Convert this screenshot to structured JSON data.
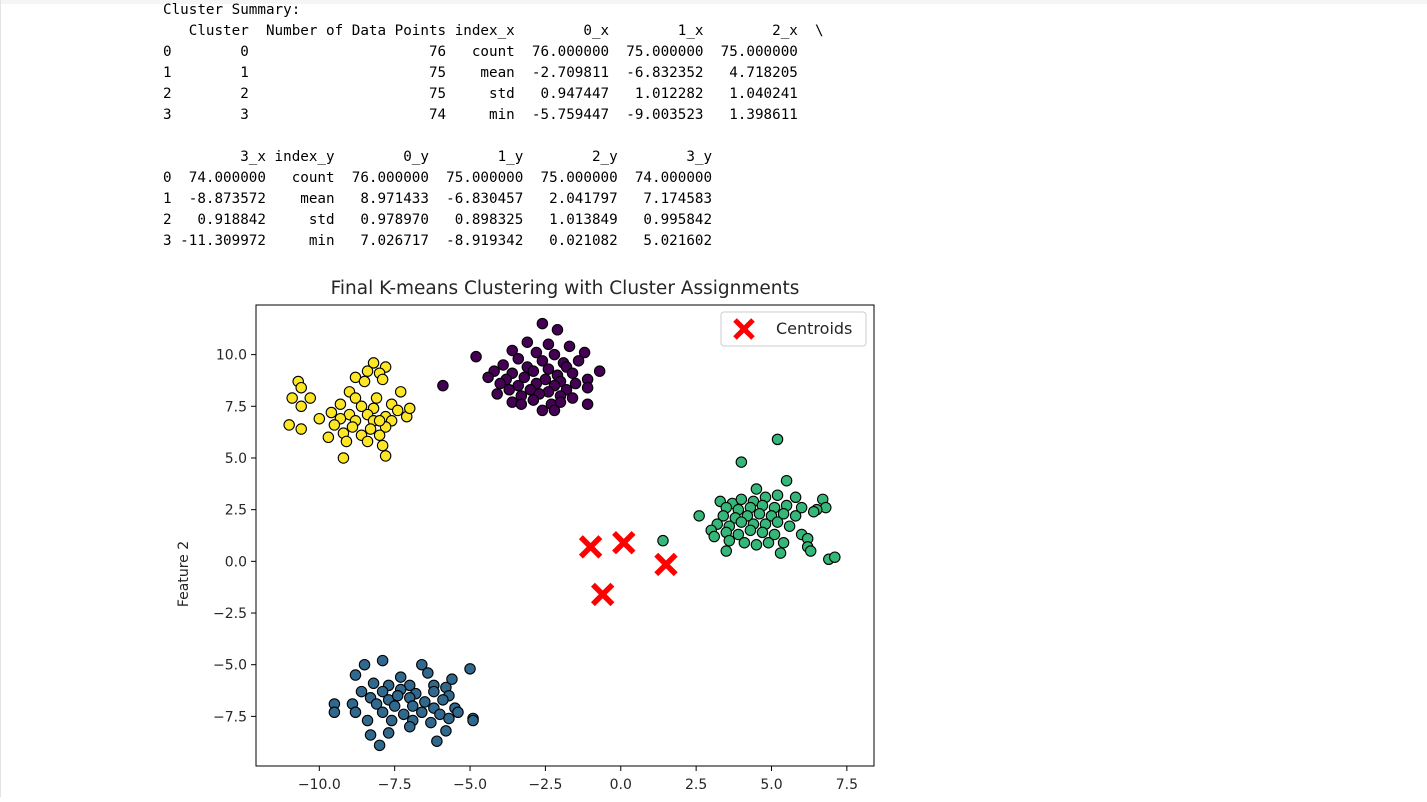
{
  "stdout": {
    "heading": "Cluster Summary:",
    "lines": [
      "   Cluster  Number of Data Points index_x        0_x        1_x        2_x  \\",
      "0        0                     76   count  76.000000  75.000000  75.000000",
      "1        1                     75    mean  -2.709811  -6.832352   4.718205",
      "2        2                     75     std   0.947447   1.012282   1.040241",
      "3        3                     74     min  -5.759447  -9.003523   1.398611",
      "",
      "         3_x index_y        0_y        1_y        2_y        3_y",
      "0  74.000000   count  76.000000  75.000000  75.000000  74.000000",
      "1  -8.873572    mean   8.971433  -6.830457   2.041797   7.174583",
      "2   0.918842     std   0.978970   0.898325   1.013849   0.995842",
      "3 -11.309972     min   7.026717  -8.919342   0.021082   5.021602"
    ]
  },
  "chart_data": {
    "type": "scatter",
    "title": "Final K-means Clustering with Cluster Assignments",
    "xlabel": "",
    "ylabel": "Feature 2",
    "xlim": [
      -12.1,
      8.4
    ],
    "ylim": [
      -9.9,
      12.4
    ],
    "xticks": [
      -10.0,
      -7.5,
      -5.0,
      -2.5,
      0.0,
      2.5,
      5.0,
      7.5
    ],
    "yticks": [
      -7.5,
      -5.0,
      -2.5,
      0.0,
      2.5,
      5.0,
      7.5,
      10.0
    ],
    "xtick_labels": [
      "−10.0",
      "−7.5",
      "−5.0",
      "−2.5",
      "0.0",
      "2.5",
      "5.0",
      "7.5"
    ],
    "ytick_labels": [
      "−7.5",
      "−5.0",
      "−2.5",
      "0.0",
      "2.5",
      "5.0",
      "7.5",
      "10.0"
    ],
    "grid": false,
    "legend": {
      "position": "top-right",
      "entries": [
        "Centroids"
      ]
    },
    "colors": {
      "cluster_0": "#440154",
      "cluster_1": "#31688e",
      "cluster_2": "#35b779",
      "cluster_3": "#fde725",
      "centroid": "#ff0000",
      "edge": "#000000"
    },
    "series": [
      {
        "cluster": 0,
        "color": "#440154",
        "points": [
          [
            -2.6,
            11.5
          ],
          [
            -2.1,
            11.2
          ],
          [
            -3.1,
            10.6
          ],
          [
            -2.4,
            10.5
          ],
          [
            -1.7,
            10.4
          ],
          [
            -1.2,
            10.1
          ],
          [
            -3.6,
            10.2
          ],
          [
            -2.8,
            10.1
          ],
          [
            -2.2,
            10.0
          ],
          [
            -4.8,
            9.9
          ],
          [
            -3.4,
            9.8
          ],
          [
            -2.6,
            9.7
          ],
          [
            -1.9,
            9.6
          ],
          [
            -1.4,
            9.7
          ],
          [
            -3.9,
            9.5
          ],
          [
            -3.1,
            9.4
          ],
          [
            -2.4,
            9.3
          ],
          [
            -1.8,
            9.4
          ],
          [
            -0.7,
            9.2
          ],
          [
            -4.2,
            9.2
          ],
          [
            -3.6,
            9.1
          ],
          [
            -2.9,
            9.2
          ],
          [
            -2.1,
            9.0
          ],
          [
            -1.6,
            9.1
          ],
          [
            -4.4,
            8.9
          ],
          [
            -3.8,
            8.8
          ],
          [
            -3.2,
            8.9
          ],
          [
            -2.5,
            8.8
          ],
          [
            -2.0,
            8.7
          ],
          [
            -1.1,
            8.8
          ],
          [
            -4.0,
            8.6
          ],
          [
            -3.4,
            8.5
          ],
          [
            -2.8,
            8.6
          ],
          [
            -2.2,
            8.5
          ],
          [
            -1.5,
            8.6
          ],
          [
            -5.9,
            8.5
          ],
          [
            -3.7,
            8.3
          ],
          [
            -3.0,
            8.3
          ],
          [
            -2.4,
            8.2
          ],
          [
            -1.8,
            8.3
          ],
          [
            -1.1,
            8.4
          ],
          [
            -4.1,
            8.1
          ],
          [
            -3.3,
            8.0
          ],
          [
            -2.7,
            8.1
          ],
          [
            -2.0,
            8.0
          ],
          [
            -3.6,
            7.7
          ],
          [
            -2.9,
            7.8
          ],
          [
            -2.3,
            7.6
          ],
          [
            -1.6,
            7.9
          ],
          [
            -1.1,
            7.6
          ],
          [
            -2.6,
            7.3
          ],
          [
            -2.2,
            7.3
          ],
          [
            -2.0,
            7.7
          ],
          [
            -3.3,
            7.6
          ]
        ]
      },
      {
        "cluster": 1,
        "color": "#31688e",
        "points": [
          [
            -7.9,
            -4.8
          ],
          [
            -8.5,
            -5.0
          ],
          [
            -6.6,
            -5.0
          ],
          [
            -5.0,
            -5.2
          ],
          [
            -8.8,
            -5.5
          ],
          [
            -7.3,
            -5.6
          ],
          [
            -6.4,
            -5.4
          ],
          [
            -5.6,
            -5.7
          ],
          [
            -8.2,
            -5.9
          ],
          [
            -7.7,
            -6.0
          ],
          [
            -7.0,
            -6.0
          ],
          [
            -6.2,
            -6.0
          ],
          [
            -5.8,
            -6.1
          ],
          [
            -8.6,
            -6.3
          ],
          [
            -7.9,
            -6.3
          ],
          [
            -7.3,
            -6.2
          ],
          [
            -6.8,
            -6.4
          ],
          [
            -6.2,
            -6.3
          ],
          [
            -5.7,
            -6.5
          ],
          [
            -8.3,
            -6.6
          ],
          [
            -7.7,
            -6.7
          ],
          [
            -7.0,
            -6.6
          ],
          [
            -6.5,
            -6.8
          ],
          [
            -5.9,
            -6.7
          ],
          [
            -9.5,
            -6.9
          ],
          [
            -8.9,
            -6.9
          ],
          [
            -8.1,
            -6.9
          ],
          [
            -7.5,
            -7.0
          ],
          [
            -6.9,
            -7.0
          ],
          [
            -6.2,
            -7.1
          ],
          [
            -5.5,
            -7.1
          ],
          [
            -9.5,
            -7.3
          ],
          [
            -8.8,
            -7.3
          ],
          [
            -7.9,
            -7.3
          ],
          [
            -7.2,
            -7.4
          ],
          [
            -6.6,
            -7.3
          ],
          [
            -6.0,
            -7.4
          ],
          [
            -5.4,
            -7.3
          ],
          [
            -4.9,
            -7.6
          ],
          [
            -8.4,
            -7.7
          ],
          [
            -7.6,
            -7.7
          ],
          [
            -6.9,
            -7.7
          ],
          [
            -6.3,
            -7.8
          ],
          [
            -5.7,
            -7.6
          ],
          [
            -7.0,
            -8.0
          ],
          [
            -5.8,
            -8.2
          ],
          [
            -7.7,
            -8.3
          ],
          [
            -8.3,
            -8.4
          ],
          [
            -6.1,
            -8.7
          ],
          [
            -8.0,
            -8.9
          ],
          [
            -4.9,
            -7.7
          ],
          [
            -7.4,
            -6.5
          ]
        ]
      },
      {
        "cluster": 2,
        "color": "#35b779",
        "points": [
          [
            5.2,
            5.9
          ],
          [
            4.0,
            4.8
          ],
          [
            4.5,
            3.5
          ],
          [
            5.5,
            3.9
          ],
          [
            3.3,
            2.9
          ],
          [
            3.7,
            2.8
          ],
          [
            4.0,
            3.0
          ],
          [
            4.4,
            2.9
          ],
          [
            4.8,
            3.1
          ],
          [
            5.2,
            3.2
          ],
          [
            5.8,
            3.1
          ],
          [
            6.7,
            3.0
          ],
          [
            3.5,
            2.6
          ],
          [
            3.9,
            2.5
          ],
          [
            4.3,
            2.6
          ],
          [
            4.7,
            2.7
          ],
          [
            5.1,
            2.6
          ],
          [
            5.5,
            2.7
          ],
          [
            6.0,
            2.6
          ],
          [
            6.8,
            2.6
          ],
          [
            6.5,
            2.5
          ],
          [
            3.4,
            2.2
          ],
          [
            3.8,
            2.1
          ],
          [
            4.2,
            2.2
          ],
          [
            4.6,
            2.3
          ],
          [
            5.0,
            2.2
          ],
          [
            5.4,
            2.3
          ],
          [
            5.8,
            2.2
          ],
          [
            6.4,
            2.4
          ],
          [
            2.6,
            2.2
          ],
          [
            3.2,
            1.8
          ],
          [
            3.6,
            1.7
          ],
          [
            4.0,
            1.9
          ],
          [
            4.4,
            1.8
          ],
          [
            4.8,
            1.8
          ],
          [
            5.2,
            1.9
          ],
          [
            5.6,
            1.7
          ],
          [
            3.0,
            1.5
          ],
          [
            3.5,
            1.4
          ],
          [
            3.9,
            1.3
          ],
          [
            4.3,
            1.5
          ],
          [
            4.7,
            1.4
          ],
          [
            5.1,
            1.3
          ],
          [
            6.0,
            1.3
          ],
          [
            6.2,
            1.1
          ],
          [
            3.1,
            1.2
          ],
          [
            3.6,
            1.0
          ],
          [
            4.1,
            0.9
          ],
          [
            4.5,
            0.8
          ],
          [
            4.9,
            0.9
          ],
          [
            5.4,
            0.9
          ],
          [
            6.2,
            0.7
          ],
          [
            6.3,
            0.5
          ],
          [
            3.5,
            0.5
          ],
          [
            5.3,
            0.4
          ],
          [
            6.9,
            0.1
          ],
          [
            7.1,
            0.2
          ],
          [
            1.4,
            1.0
          ]
        ]
      },
      {
        "cluster": 3,
        "color": "#fde725",
        "points": [
          [
            -8.2,
            9.6
          ],
          [
            -7.8,
            9.4
          ],
          [
            -8.4,
            9.2
          ],
          [
            -8.0,
            9.1
          ],
          [
            -8.8,
            8.9
          ],
          [
            -7.9,
            8.8
          ],
          [
            -10.7,
            8.7
          ],
          [
            -8.5,
            8.7
          ],
          [
            -10.6,
            8.4
          ],
          [
            -9.0,
            8.2
          ],
          [
            -7.3,
            8.2
          ],
          [
            -10.9,
            7.9
          ],
          [
            -10.3,
            7.9
          ],
          [
            -8.8,
            7.9
          ],
          [
            -8.1,
            7.9
          ],
          [
            -7.6,
            7.6
          ],
          [
            -10.6,
            7.5
          ],
          [
            -9.3,
            7.6
          ],
          [
            -8.6,
            7.5
          ],
          [
            -8.2,
            7.4
          ],
          [
            -7.4,
            7.3
          ],
          [
            -9.6,
            7.2
          ],
          [
            -9.0,
            7.1
          ],
          [
            -8.4,
            7.1
          ],
          [
            -7.8,
            7.0
          ],
          [
            -7.1,
            7.0
          ],
          [
            -10.0,
            6.9
          ],
          [
            -9.3,
            6.9
          ],
          [
            -8.8,
            6.8
          ],
          [
            -8.2,
            6.8
          ],
          [
            -7.6,
            6.8
          ],
          [
            -11.0,
            6.6
          ],
          [
            -9.5,
            6.6
          ],
          [
            -8.9,
            6.5
          ],
          [
            -8.3,
            6.4
          ],
          [
            -7.8,
            6.5
          ],
          [
            -10.6,
            6.4
          ],
          [
            -9.2,
            6.2
          ],
          [
            -8.6,
            6.1
          ],
          [
            -8.0,
            6.1
          ],
          [
            -9.7,
            6.0
          ],
          [
            -9.1,
            5.8
          ],
          [
            -8.4,
            5.8
          ],
          [
            -7.9,
            5.6
          ],
          [
            -9.2,
            5.0
          ],
          [
            -7.8,
            5.1
          ],
          [
            -8.0,
            6.8
          ],
          [
            -7.0,
            7.4
          ]
        ]
      }
    ],
    "centroids": [
      [
        -1.0,
        0.7
      ],
      [
        0.1,
        0.9
      ],
      [
        1.5,
        -0.15
      ],
      [
        -0.6,
        -1.6
      ]
    ]
  }
}
